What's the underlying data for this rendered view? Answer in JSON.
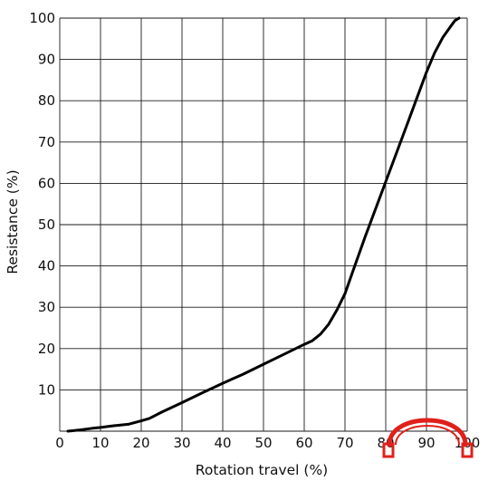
{
  "chart_data": {
    "type": "line",
    "title": "",
    "xlabel": "Rotation travel (%)",
    "ylabel": "Resistance (%)",
    "xlim": [
      0,
      100
    ],
    "ylim": [
      0,
      100
    ],
    "x_ticks": [
      0,
      10,
      20,
      30,
      40,
      50,
      60,
      70,
      80,
      90,
      100
    ],
    "y_ticks": [
      10,
      20,
      30,
      40,
      50,
      60,
      70,
      80,
      90,
      100
    ],
    "grid": true,
    "line_color": "#000000",
    "series": [
      {
        "points": [
          [
            2,
            0
          ],
          [
            5,
            0.3
          ],
          [
            8,
            0.7
          ],
          [
            10,
            0.9
          ],
          [
            13,
            1.3
          ],
          [
            17,
            1.7
          ],
          [
            20,
            2.5
          ],
          [
            22,
            3.1
          ],
          [
            25,
            4.6
          ],
          [
            30,
            6.9
          ],
          [
            35,
            9.3
          ],
          [
            40,
            11.6
          ],
          [
            45,
            13.8
          ],
          [
            50,
            16.2
          ],
          [
            55,
            18.6
          ],
          [
            60,
            21.0
          ],
          [
            62,
            21.9
          ],
          [
            64,
            23.5
          ],
          [
            66,
            25.9
          ],
          [
            68,
            29.3
          ],
          [
            70,
            33.3
          ],
          [
            72,
            38.9
          ],
          [
            75,
            47.2
          ],
          [
            80,
            60.4
          ],
          [
            85,
            73.6
          ],
          [
            90,
            86.9
          ],
          [
            92,
            91.6
          ],
          [
            94,
            95.3
          ],
          [
            96,
            98.1
          ],
          [
            97,
            99.4
          ],
          [
            98,
            100
          ]
        ]
      }
    ]
  },
  "watermark": {
    "kind": "headphones logo",
    "color": "#e0201b"
  }
}
